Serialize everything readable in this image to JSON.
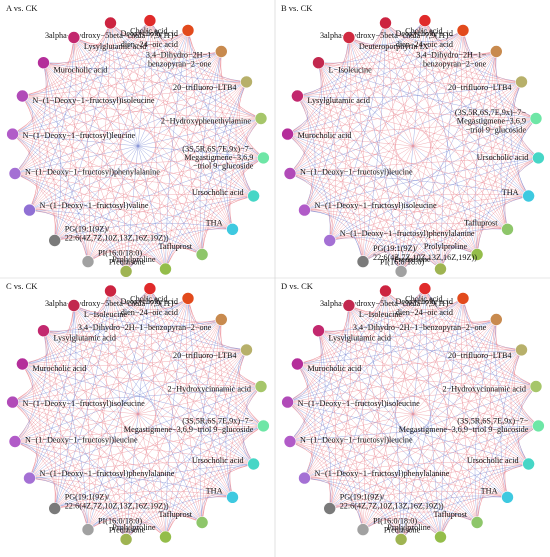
{
  "colors": {
    "positive_edge": "#e8808a",
    "negative_edge": "#6f7fd0"
  },
  "panels": [
    {
      "title": "A vs. CK",
      "nodes": [
        {
          "label": "Cholic acid",
          "color": "#e02a2a"
        },
        {
          "label": "3alpha−Hydroxy−5beta−chola−7,9(11)−\ndien−24−oic acid",
          "color": "#e24a1c"
        },
        {
          "label": "3,4−Dihydro−2H−1\nbenzopyran−2−one",
          "color": "#c88a4e"
        },
        {
          "label": "20−trifluoro−LTB4",
          "color": "#b7b06a"
        },
        {
          "label": "2−Hydroxyphenethylamine",
          "color": "#a6c66a"
        },
        {
          "label": "(3S,5R,6S,7E,9x)−7−\nMegastigmene−3,6,9\n−triol 9−glucoside",
          "color": "#6ee6a6"
        },
        {
          "label": "Ursocholic acid",
          "color": "#46d6c6"
        },
        {
          "label": "THA",
          "color": "#3ec9e0"
        },
        {
          "label": "Tafluprost",
          "color": "#8ec66a"
        },
        {
          "label": "Prolylproline",
          "color": "#94bd4a"
        },
        {
          "label": "Prednisone",
          "color": "#9fb452"
        },
        {
          "label": "PI(16:0/18:0)",
          "color": "#a1a1a1"
        },
        {
          "label": "PG(19:1(9Z)/\n22:6(4Z,7Z,10Z,13Z,16Z,19Z))",
          "color": "#7a7a7a"
        },
        {
          "label": "N−(1−Deoxy−1−fructosyl)valine",
          "color": "#9070d4"
        },
        {
          "label": "N−(1−Deoxy−1−fructosyl)phenylalanine",
          "color": "#a470d4"
        },
        {
          "label": "N−(1−Deoxy−1−fructosyl)leucine",
          "color": "#b15bc8"
        },
        {
          "label": "N−(1−Deoxy−1−fructosyl)isoleucine",
          "color": "#b14bb8"
        },
        {
          "label": "Murocholic acid",
          "color": "#b42e9a"
        },
        {
          "label": "Lysylglutamic acid",
          "color": "#c2286e"
        },
        {
          "label": "Deoxycholic acid",
          "color": "#cc2340"
        }
      ]
    },
    {
      "title": "B vs. CK",
      "nodes": [
        {
          "label": "Cholic acid",
          "color": "#e02a2a"
        },
        {
          "label": "3alpha−Hydroxy−5beta−chola−7,9(11)−\ndien−24−oic acid",
          "color": "#e24a1c"
        },
        {
          "label": "3,4−Dihydro−2H−1−\nbenzopyran−2−one",
          "color": "#c88a4e"
        },
        {
          "label": "20−trifluoro−LTB4",
          "color": "#b7b06a"
        },
        {
          "label": "(3S,5R,6S,7E,9x)−7−\nMegastigmene−3,6,9\n−triol 9−glucoside",
          "color": "#6ee6a6"
        },
        {
          "label": "Ursocholic acid",
          "color": "#46d6c6"
        },
        {
          "label": "THA",
          "color": "#3ec9e0"
        },
        {
          "label": "Tafluprost",
          "color": "#8ec66a"
        },
        {
          "label": "Prolylproline",
          "color": "#94bd4a"
        },
        {
          "label": "Prednisone",
          "color": "#9fb452"
        },
        {
          "label": "PI(16:0/18:0)",
          "color": "#a1a1a1"
        },
        {
          "label": "PG(19:1(9Z)/\n22:6(4Z,7Z,10Z,13Z,16Z,19Z))",
          "color": "#7a7a7a"
        },
        {
          "label": "N−(1−Deoxy−1−fructosyl)phenylalanine",
          "color": "#a470d4"
        },
        {
          "label": "N−(1−Deoxy−1−fructosyl)isoleucine",
          "color": "#b15bc8"
        },
        {
          "label": "N−(1−Deoxy−1−fructosyl)leucine",
          "color": "#b14bb8"
        },
        {
          "label": "Murocholic acid",
          "color": "#b42e9a"
        },
        {
          "label": "Lysylglutamic acid",
          "color": "#c2286e"
        },
        {
          "label": "L−Isoleucine",
          "color": "#c2284e"
        },
        {
          "label": "Deuteroporphyrin IX",
          "color": "#d02a40"
        },
        {
          "label": "Deoxycholic acid",
          "color": "#cc2340"
        }
      ]
    },
    {
      "title": "C vs. CK",
      "nodes": [
        {
          "label": "Cholic acid",
          "color": "#e02a2a"
        },
        {
          "label": "3alpha−Hydroxy−5beta−chola−7,9(11)−\ndien−24−oic acid",
          "color": "#e24a1c"
        },
        {
          "label": "3,4−Dihydro−2H−1−benzopyran−2−one",
          "color": "#c88a4e"
        },
        {
          "label": "20−trifluoro−LTB4",
          "color": "#b7b06a"
        },
        {
          "label": "2−Hydroxycinnamic acid",
          "color": "#a6c66a"
        },
        {
          "label": "(3S,5R,6S,7E,9x)−7−\nMegastigmene−3,6,9−triol 9−glucoside",
          "color": "#6ee6a6"
        },
        {
          "label": "Ursocholic acid",
          "color": "#46d6c6"
        },
        {
          "label": "THA",
          "color": "#3ec9e0"
        },
        {
          "label": "Tafluprost",
          "color": "#8ec66a"
        },
        {
          "label": "Prolylproline",
          "color": "#94bd4a"
        },
        {
          "label": "Prednisone",
          "color": "#9fb452"
        },
        {
          "label": "PI(16:0/18:0)",
          "color": "#a1a1a1"
        },
        {
          "label": "PG(19:1(9Z)/\n22:6(4Z,7Z,10Z,13Z,16Z,19Z))",
          "color": "#7a7a7a"
        },
        {
          "label": "N−(1−Deoxy−1−fructosyl)phenylalanine",
          "color": "#a470d4"
        },
        {
          "label": "N−(1−Deoxy−1−fructosyl)leucine",
          "color": "#b15bc8"
        },
        {
          "label": "N−(1−Deoxy−1−fructosyl)isoleucine",
          "color": "#b14bb8"
        },
        {
          "label": "Murocholic acid",
          "color": "#b42e9a"
        },
        {
          "label": "Lysylglutamic acid",
          "color": "#c2286e"
        },
        {
          "label": "L−Isoleucine",
          "color": "#c2284e"
        },
        {
          "label": "Deoxycholic acid",
          "color": "#cc2340"
        }
      ]
    },
    {
      "title": "D vs. CK",
      "nodes": [
        {
          "label": "Cholic acid",
          "color": "#e02a2a"
        },
        {
          "label": "3alpha−Hydroxy−5beta−chola−7,9(11)−\ndien−24−oic acid",
          "color": "#e24a1c"
        },
        {
          "label": "3,4−Dihydro−2H−1−benzopyran−2−one",
          "color": "#c88a4e"
        },
        {
          "label": "20−trifluoro−LTB4",
          "color": "#b7b06a"
        },
        {
          "label": "2−Hydroxycinnamic acid",
          "color": "#a6c66a"
        },
        {
          "label": "(3S,5R,6S,7E,9x)−7−\nMegastigmene−3,6,9−triol 9−glucoside",
          "color": "#6ee6a6"
        },
        {
          "label": "Ursocholic acid",
          "color": "#46d6c6"
        },
        {
          "label": "THA",
          "color": "#3ec9e0"
        },
        {
          "label": "Tafluprost",
          "color": "#8ec66a"
        },
        {
          "label": "Prolylproline",
          "color": "#94bd4a"
        },
        {
          "label": "Prednisone",
          "color": "#9fb452"
        },
        {
          "label": "PI(16:0/18:0)",
          "color": "#a1a1a1"
        },
        {
          "label": "PG(19:1(9Z)/\n22:6(4Z,7Z,10Z,13Z,16Z,19Z))",
          "color": "#7a7a7a"
        },
        {
          "label": "N−(1−Deoxy−1−fructosyl)phenylalanine",
          "color": "#a470d4"
        },
        {
          "label": "N−(1−Deoxy−1−fructosyl)leucine",
          "color": "#b15bc8"
        },
        {
          "label": "N−(1−Deoxy−1−fructosyl)isoleucine",
          "color": "#b14bb8"
        },
        {
          "label": "Murocholic acid",
          "color": "#b42e9a"
        },
        {
          "label": "Lysylglutamic acid",
          "color": "#c2286e"
        },
        {
          "label": "L−Isoleucine",
          "color": "#c2284e"
        },
        {
          "label": "Deoxycholic acid",
          "color": "#cc2340"
        }
      ]
    }
  ]
}
